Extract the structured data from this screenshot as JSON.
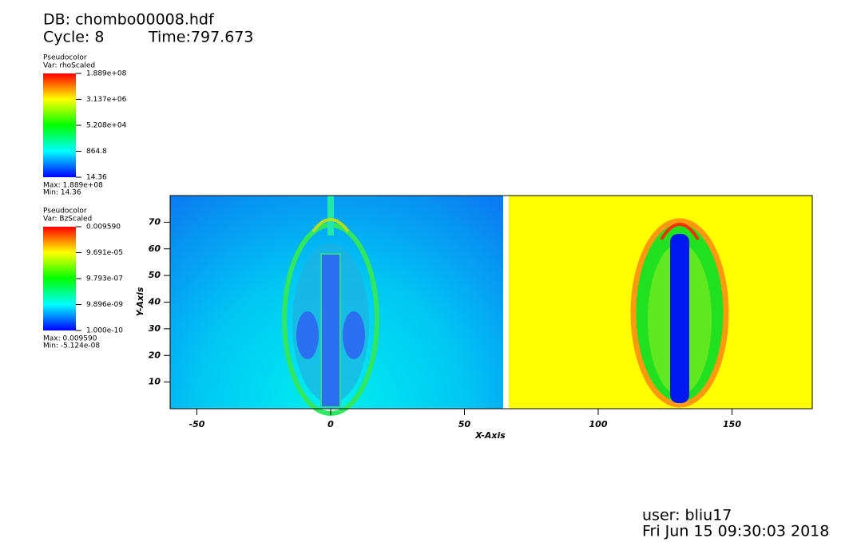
{
  "chart_data": {
    "type": "pseudocolor",
    "db": "DB: chombo00008.hdf",
    "cycle": "Cycle: 8",
    "time": "Time:797.673",
    "xlabel": "X-Axis",
    "ylabel": "Y-Axis",
    "xlim": [
      -60,
      180
    ],
    "ylim": [
      0,
      80
    ],
    "xticks": [
      -50,
      0,
      50,
      100,
      150
    ],
    "yticks": [
      10,
      20,
      30,
      40,
      50,
      60,
      70
    ],
    "legends": [
      {
        "plot": "Pseudocolor",
        "var": "Var: rhoScaled",
        "log": true,
        "range": [
          14.36,
          188900000
        ],
        "ticks": [
          {
            "value": 188900000,
            "label": "1.889e+08"
          },
          {
            "value": 3137000,
            "label": "3.137e+06"
          },
          {
            "value": 52080,
            "label": "5.208e+04"
          },
          864.8,
          14.36
        ],
        "max": "Max:  1.889e+08",
        "min": "Min:  14.36"
      },
      {
        "plot": "Pseudocolor",
        "var": "Var: BzScaled",
        "log": true,
        "range": [
          1e-10,
          0.00959
        ],
        "ticks": [
          {
            "value": 0.00959,
            "label": "0.009590"
          },
          {
            "value": 9.691e-05,
            "label": "9.691e-05"
          },
          {
            "value": 9.793e-07,
            "label": "9.793e-07"
          },
          {
            "value": 9.896e-09,
            "label": "9.896e-09"
          },
          {
            "value": 1e-10,
            "label": "1.000e-10"
          }
        ],
        "max": "Max:  0.009590",
        "min": "Min: -5.124e-08"
      }
    ],
    "user": "user: bliu17",
    "date": "Fri Jun 15 09:30:03 2018"
  }
}
